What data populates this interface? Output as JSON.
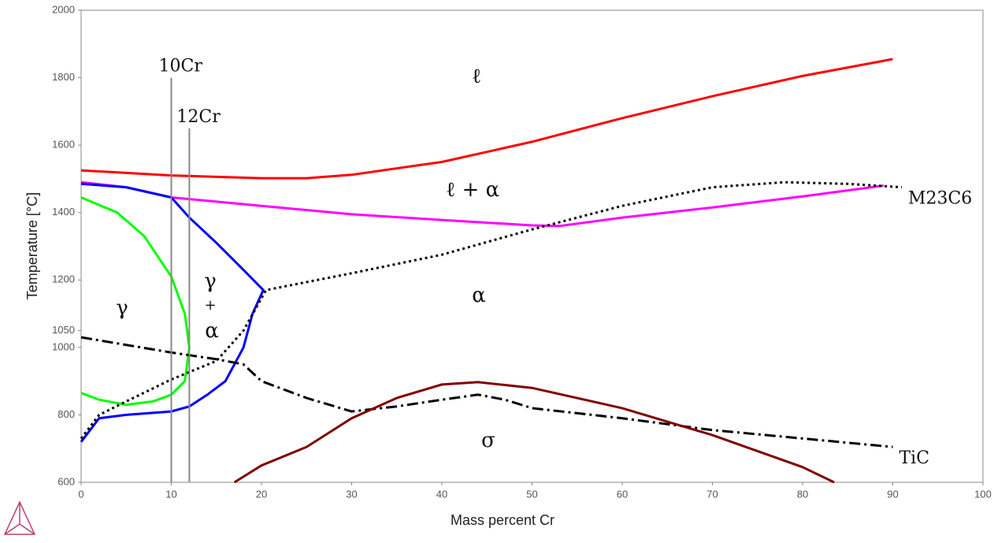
{
  "chart_data": {
    "type": "line",
    "xlabel": "Mass percent Cr",
    "ylabel": "Temperature [°C]",
    "xlim": [
      0,
      100
    ],
    "xticks": [
      0,
      10,
      20,
      30,
      40,
      50,
      60,
      70,
      80,
      90,
      100
    ],
    "ylim": [
      600,
      2000
    ],
    "yticks": [
      600,
      800,
      1000,
      1050,
      1200,
      1400,
      1600,
      1800,
      2000
    ],
    "grid": false,
    "series": [
      {
        "color": "#ff0000",
        "style": "solid",
        "x": [
          0,
          10,
          20,
          25,
          30,
          40,
          50,
          60,
          70,
          80,
          90
        ],
        "values": [
          1525,
          1510,
          1502,
          1502,
          1512,
          1550,
          1610,
          1680,
          1745,
          1805,
          1855
        ]
      },
      {
        "color": "#ff00ff",
        "style": "solid",
        "x": [
          0,
          5,
          10,
          20,
          30,
          40,
          50,
          53,
          60,
          70,
          80,
          89
        ],
        "values": [
          1490,
          1475,
          1445,
          1420,
          1395,
          1378,
          1362,
          1360,
          1385,
          1415,
          1448,
          1480
        ]
      },
      {
        "color": "#0000ff",
        "style": "solid",
        "x": [
          0,
          5,
          10,
          12,
          15,
          18,
          20.2,
          19,
          18,
          16,
          14,
          12,
          10,
          5,
          2,
          0
        ],
        "values": [
          1485,
          1475,
          1445,
          1385,
          1310,
          1230,
          1170,
          1100,
          1000,
          900,
          860,
          825,
          810,
          800,
          790,
          720
        ]
      },
      {
        "color": "#00ff00",
        "style": "solid",
        "x": [
          0,
          4,
          7,
          10,
          11.5,
          12,
          11.5,
          10,
          8,
          5,
          2,
          0
        ],
        "values": [
          1445,
          1400,
          1330,
          1210,
          1100,
          1000,
          900,
          860,
          840,
          830,
          845,
          865
        ]
      },
      {
        "name": "M23C6",
        "color": "#000000",
        "style": "dotted",
        "x": [
          0,
          2,
          5,
          10,
          15,
          18,
          20.5,
          30,
          40,
          50,
          60,
          70,
          78,
          85,
          91
        ],
        "values": [
          730,
          800,
          840,
          905,
          960,
          1050,
          1170,
          1220,
          1275,
          1350,
          1420,
          1475,
          1490,
          1485,
          1475
        ]
      },
      {
        "name": "TiC",
        "color": "#000000",
        "style": "dashdot",
        "x": [
          0,
          10,
          15,
          18,
          20,
          25,
          30,
          35,
          40,
          44,
          47,
          50,
          60,
          70,
          80,
          90
        ],
        "values": [
          1030,
          985,
          965,
          950,
          900,
          850,
          810,
          825,
          845,
          860,
          845,
          820,
          790,
          755,
          730,
          705
        ]
      },
      {
        "color": "#800000",
        "style": "solid",
        "x": [
          17,
          20,
          25,
          30,
          35,
          40,
          44,
          50,
          60,
          70,
          80,
          83.5
        ],
        "values": [
          600,
          650,
          705,
          790,
          850,
          890,
          897,
          880,
          820,
          740,
          645,
          600
        ]
      }
    ],
    "reference_lines": [
      {
        "label": "10Cr",
        "x": 10,
        "y": [
          600,
          1800
        ]
      },
      {
        "label": "12Cr",
        "x": 12,
        "y": [
          600,
          1650
        ]
      }
    ],
    "annotations": [
      "ℓ",
      "ℓ + α",
      "γ",
      "γ",
      "+",
      "α",
      "α",
      "σ"
    ]
  }
}
